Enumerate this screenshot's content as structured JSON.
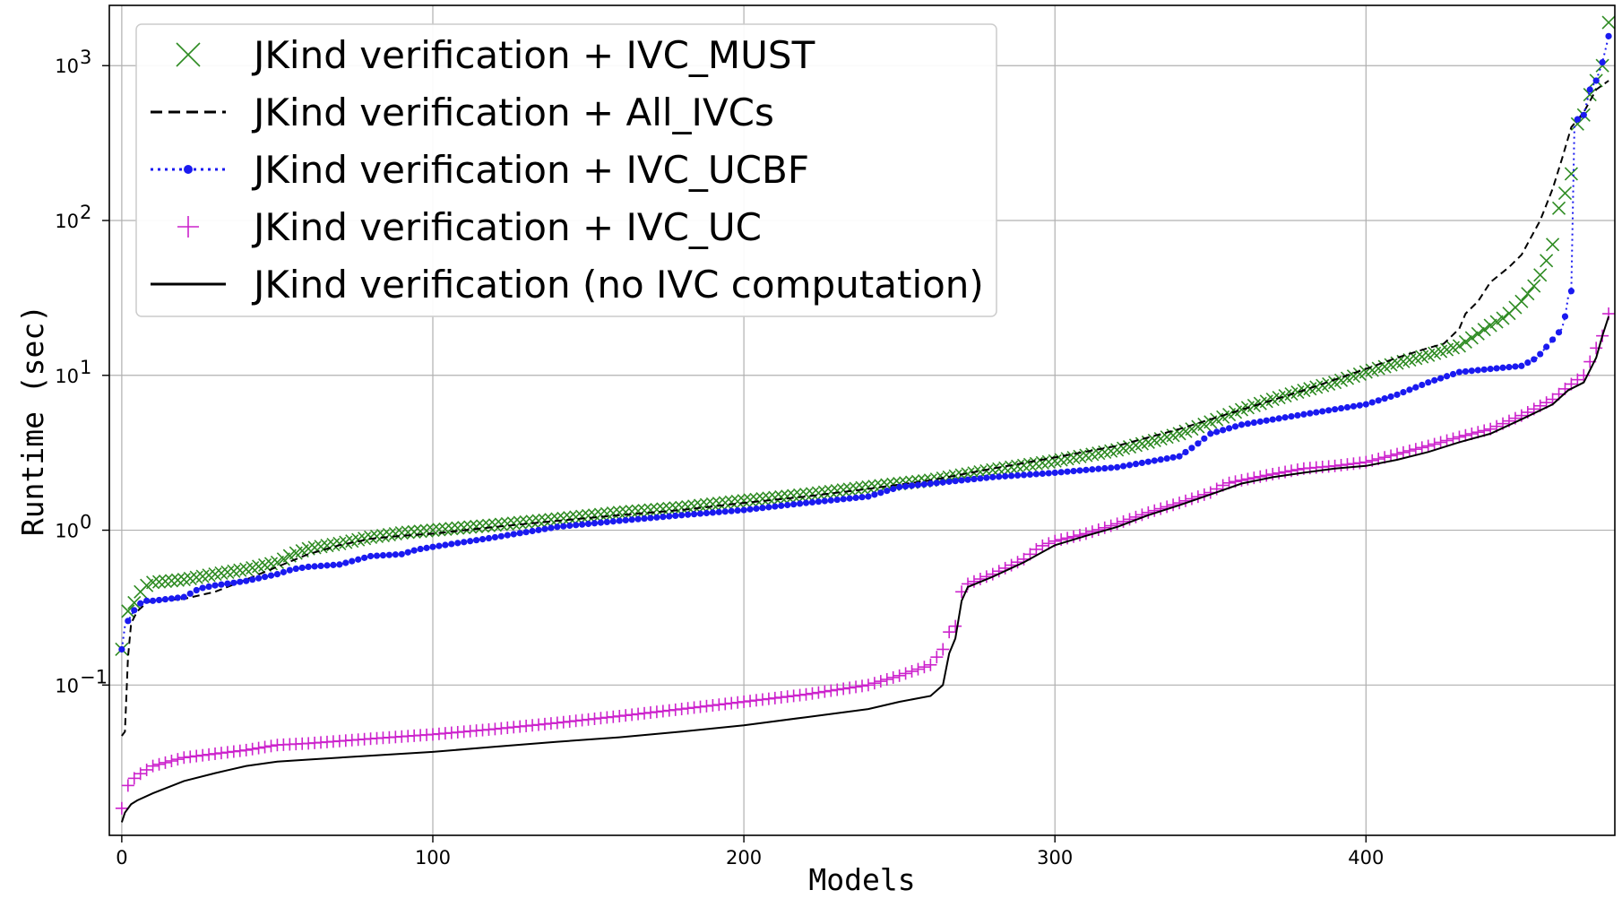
{
  "chart_data": {
    "type": "line",
    "title": "",
    "xlabel": "Models",
    "ylabel": "Runtime (sec)",
    "xlim": [
      -4,
      480
    ],
    "ylim": [
      0.0107,
      2450
    ],
    "yscale": "log",
    "grid": true,
    "legend_position": "top-left",
    "x_ticks": [
      0,
      100,
      200,
      300,
      400
    ],
    "x_tick_labels": [
      "0",
      "100",
      "200",
      "300",
      "400"
    ],
    "y_ticks": [
      0.1,
      1,
      10,
      100,
      1000
    ],
    "y_tick_labels": [
      "10",
      "10",
      "10",
      "10",
      "10"
    ],
    "y_tick_exponents": [
      "−1",
      "0",
      "1",
      "2",
      "3"
    ],
    "series": [
      {
        "name": "JKind verification + IVC_MUST",
        "style": "x-markers",
        "color": "#2e8b22",
        "points": [
          [
            0,
            0.17
          ],
          [
            1,
            0.25
          ],
          [
            2,
            0.3
          ],
          [
            4,
            0.34
          ],
          [
            6,
            0.4
          ],
          [
            8,
            0.44
          ],
          [
            10,
            0.46
          ],
          [
            20,
            0.48
          ],
          [
            30,
            0.52
          ],
          [
            40,
            0.56
          ],
          [
            50,
            0.62
          ],
          [
            55,
            0.7
          ],
          [
            60,
            0.76
          ],
          [
            70,
            0.82
          ],
          [
            80,
            0.9
          ],
          [
            90,
            0.96
          ],
          [
            100,
            1.0
          ],
          [
            120,
            1.08
          ],
          [
            140,
            1.18
          ],
          [
            160,
            1.3
          ],
          [
            180,
            1.4
          ],
          [
            200,
            1.55
          ],
          [
            220,
            1.7
          ],
          [
            240,
            1.9
          ],
          [
            260,
            2.1
          ],
          [
            280,
            2.45
          ],
          [
            300,
            2.8
          ],
          [
            320,
            3.3
          ],
          [
            330,
            3.7
          ],
          [
            340,
            4.2
          ],
          [
            350,
            5.0
          ],
          [
            360,
            6.0
          ],
          [
            370,
            7.0
          ],
          [
            380,
            8.0
          ],
          [
            390,
            9.0
          ],
          [
            400,
            10.5
          ],
          [
            410,
            12.0
          ],
          [
            420,
            13.5
          ],
          [
            430,
            15.5
          ],
          [
            435,
            18.0
          ],
          [
            440,
            21.0
          ],
          [
            445,
            24.0
          ],
          [
            450,
            30.0
          ],
          [
            455,
            40.0
          ],
          [
            458,
            55.0
          ],
          [
            460,
            70.0
          ],
          [
            462,
            120.0
          ],
          [
            464,
            150.0
          ],
          [
            466,
            200.0
          ],
          [
            468,
            420.0
          ],
          [
            470,
            480.0
          ],
          [
            472,
            650.0
          ],
          [
            474,
            800.0
          ],
          [
            476,
            1000.0
          ],
          [
            478,
            1900.0
          ]
        ]
      },
      {
        "name": "JKind verification + All_IVCs",
        "style": "dashed",
        "color": "#000000",
        "points": [
          [
            0,
            0.047
          ],
          [
            1,
            0.05
          ],
          [
            2,
            0.15
          ],
          [
            3,
            0.25
          ],
          [
            5,
            0.3
          ],
          [
            8,
            0.34
          ],
          [
            10,
            0.35
          ],
          [
            20,
            0.36
          ],
          [
            30,
            0.4
          ],
          [
            40,
            0.48
          ],
          [
            50,
            0.58
          ],
          [
            60,
            0.7
          ],
          [
            70,
            0.8
          ],
          [
            80,
            0.88
          ],
          [
            90,
            0.92
          ],
          [
            100,
            0.95
          ],
          [
            120,
            1.05
          ],
          [
            140,
            1.15
          ],
          [
            160,
            1.25
          ],
          [
            180,
            1.35
          ],
          [
            200,
            1.5
          ],
          [
            220,
            1.65
          ],
          [
            240,
            1.85
          ],
          [
            260,
            2.1
          ],
          [
            280,
            2.5
          ],
          [
            300,
            2.95
          ],
          [
            320,
            3.5
          ],
          [
            340,
            4.5
          ],
          [
            360,
            6.0
          ],
          [
            380,
            8.0
          ],
          [
            400,
            11.0
          ],
          [
            410,
            13.0
          ],
          [
            420,
            15.0
          ],
          [
            425,
            16.0
          ],
          [
            430,
            20.0
          ],
          [
            432,
            25.0
          ],
          [
            436,
            30.0
          ],
          [
            440,
            40.0
          ],
          [
            446,
            50.0
          ],
          [
            450,
            60.0
          ],
          [
            456,
            100.0
          ],
          [
            460,
            160.0
          ],
          [
            463,
            250.0
          ],
          [
            466,
            400.0
          ],
          [
            470,
            500.0
          ],
          [
            474,
            700.0
          ],
          [
            478,
            800.0
          ]
        ]
      },
      {
        "name": "JKind verification + IVC_UCBF",
        "style": "dotted-circles",
        "color": "#1a1af0",
        "points": [
          [
            0,
            0.17
          ],
          [
            1,
            0.24
          ],
          [
            3,
            0.28
          ],
          [
            5,
            0.33
          ],
          [
            8,
            0.35
          ],
          [
            10,
            0.35
          ],
          [
            20,
            0.37
          ],
          [
            25,
            0.42
          ],
          [
            30,
            0.44
          ],
          [
            40,
            0.47
          ],
          [
            50,
            0.52
          ],
          [
            55,
            0.56
          ],
          [
            60,
            0.58
          ],
          [
            70,
            0.6
          ],
          [
            80,
            0.68
          ],
          [
            90,
            0.7
          ],
          [
            95,
            0.75
          ],
          [
            100,
            0.78
          ],
          [
            120,
            0.9
          ],
          [
            140,
            1.05
          ],
          [
            160,
            1.15
          ],
          [
            180,
            1.25
          ],
          [
            200,
            1.35
          ],
          [
            220,
            1.5
          ],
          [
            240,
            1.65
          ],
          [
            250,
            1.9
          ],
          [
            260,
            2.0
          ],
          [
            280,
            2.2
          ],
          [
            300,
            2.35
          ],
          [
            320,
            2.55
          ],
          [
            340,
            3.0
          ],
          [
            345,
            3.5
          ],
          [
            350,
            4.2
          ],
          [
            360,
            4.8
          ],
          [
            380,
            5.6
          ],
          [
            400,
            6.5
          ],
          [
            410,
            7.5
          ],
          [
            420,
            9.0
          ],
          [
            430,
            10.5
          ],
          [
            440,
            11.0
          ],
          [
            450,
            11.5
          ],
          [
            455,
            13.0
          ],
          [
            460,
            17.0
          ],
          [
            463,
            20.0
          ],
          [
            464,
            24.0
          ],
          [
            465,
            32.0
          ],
          [
            466,
            35.0
          ],
          [
            467,
            400.0
          ],
          [
            468,
            450.0
          ],
          [
            470,
            480.0
          ],
          [
            472,
            700.0
          ],
          [
            474,
            800.0
          ],
          [
            476,
            1050.0
          ],
          [
            478,
            1550.0
          ]
        ]
      },
      {
        "name": "JKind verification + IVC_UC",
        "style": "plus-markers",
        "color": "#cc22cc",
        "points": [
          [
            0,
            0.016
          ],
          [
            1,
            0.021
          ],
          [
            3,
            0.024
          ],
          [
            5,
            0.026
          ],
          [
            10,
            0.03
          ],
          [
            20,
            0.034
          ],
          [
            30,
            0.036
          ],
          [
            40,
            0.038
          ],
          [
            50,
            0.041
          ],
          [
            60,
            0.042
          ],
          [
            80,
            0.045
          ],
          [
            100,
            0.048
          ],
          [
            120,
            0.052
          ],
          [
            140,
            0.057
          ],
          [
            160,
            0.063
          ],
          [
            180,
            0.07
          ],
          [
            200,
            0.078
          ],
          [
            220,
            0.087
          ],
          [
            240,
            0.1
          ],
          [
            250,
            0.115
          ],
          [
            260,
            0.135
          ],
          [
            264,
            0.17
          ],
          [
            266,
            0.22
          ],
          [
            268,
            0.24
          ],
          [
            270,
            0.4
          ],
          [
            272,
            0.45
          ],
          [
            280,
            0.52
          ],
          [
            290,
            0.65
          ],
          [
            295,
            0.78
          ],
          [
            300,
            0.85
          ],
          [
            310,
            0.95
          ],
          [
            320,
            1.1
          ],
          [
            330,
            1.3
          ],
          [
            340,
            1.5
          ],
          [
            350,
            1.75
          ],
          [
            355,
            2.0
          ],
          [
            360,
            2.1
          ],
          [
            370,
            2.3
          ],
          [
            380,
            2.5
          ],
          [
            390,
            2.6
          ],
          [
            400,
            2.75
          ],
          [
            410,
            3.1
          ],
          [
            420,
            3.5
          ],
          [
            430,
            4.0
          ],
          [
            440,
            4.5
          ],
          [
            450,
            5.5
          ],
          [
            460,
            7.0
          ],
          [
            465,
            8.5
          ],
          [
            470,
            10.0
          ],
          [
            474,
            15.0
          ],
          [
            476,
            18.0
          ],
          [
            478,
            25.0
          ]
        ]
      },
      {
        "name": "JKind verification (no IVC computation)",
        "style": "solid",
        "color": "#000000",
        "points": [
          [
            0,
            0.013
          ],
          [
            1,
            0.015
          ],
          [
            3,
            0.017
          ],
          [
            5,
            0.018
          ],
          [
            10,
            0.02
          ],
          [
            20,
            0.024
          ],
          [
            30,
            0.027
          ],
          [
            40,
            0.03
          ],
          [
            50,
            0.032
          ],
          [
            60,
            0.033
          ],
          [
            80,
            0.035
          ],
          [
            100,
            0.037
          ],
          [
            120,
            0.04
          ],
          [
            140,
            0.043
          ],
          [
            160,
            0.046
          ],
          [
            180,
            0.05
          ],
          [
            200,
            0.055
          ],
          [
            220,
            0.062
          ],
          [
            240,
            0.07
          ],
          [
            250,
            0.078
          ],
          [
            260,
            0.085
          ],
          [
            264,
            0.1
          ],
          [
            266,
            0.16
          ],
          [
            268,
            0.2
          ],
          [
            270,
            0.35
          ],
          [
            272,
            0.43
          ],
          [
            280,
            0.5
          ],
          [
            290,
            0.62
          ],
          [
            300,
            0.8
          ],
          [
            310,
            0.92
          ],
          [
            320,
            1.05
          ],
          [
            330,
            1.25
          ],
          [
            340,
            1.45
          ],
          [
            350,
            1.7
          ],
          [
            360,
            2.0
          ],
          [
            370,
            2.2
          ],
          [
            380,
            2.35
          ],
          [
            390,
            2.5
          ],
          [
            400,
            2.6
          ],
          [
            410,
            2.85
          ],
          [
            420,
            3.2
          ],
          [
            430,
            3.7
          ],
          [
            440,
            4.2
          ],
          [
            450,
            5.2
          ],
          [
            460,
            6.5
          ],
          [
            465,
            8.0
          ],
          [
            470,
            9.0
          ],
          [
            474,
            13.0
          ],
          [
            476,
            18.0
          ],
          [
            478,
            24.0
          ]
        ]
      }
    ]
  }
}
